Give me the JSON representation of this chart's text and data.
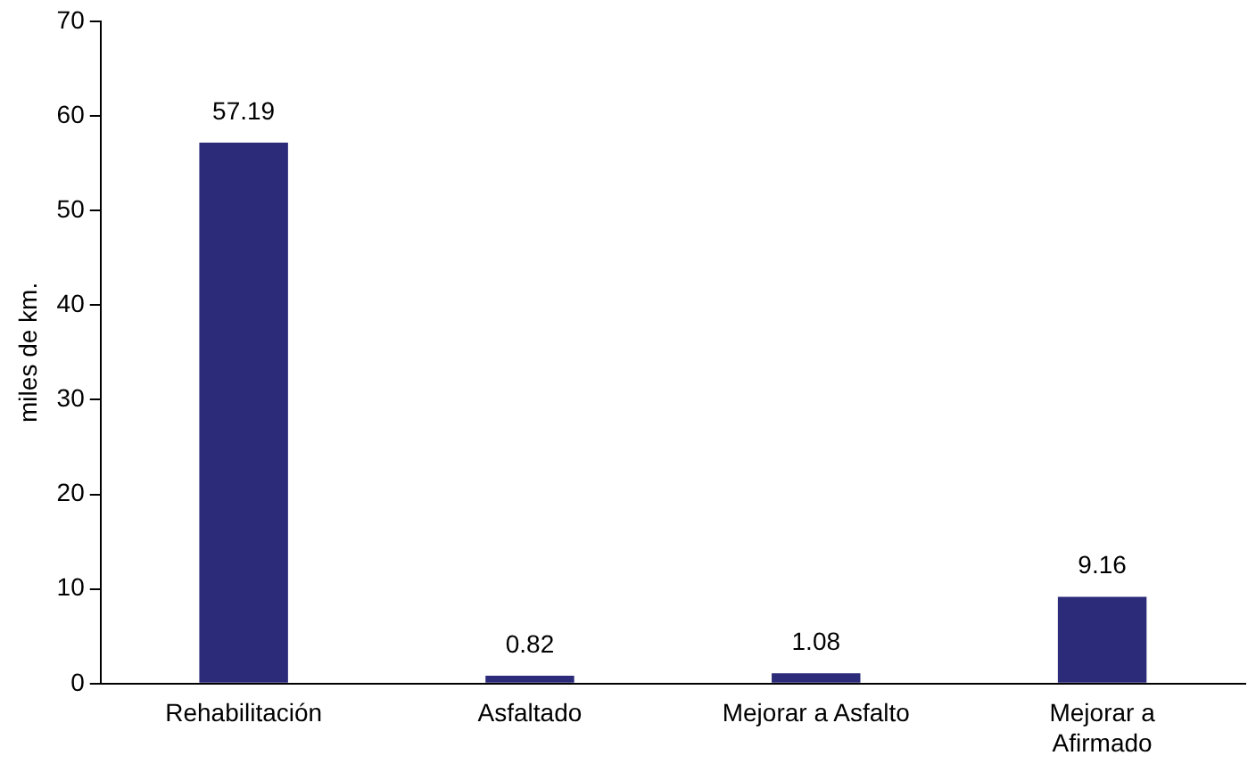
{
  "chart_data": {
    "type": "bar",
    "ylabel": "miles de km.",
    "categories": [
      "Rehabilitación",
      "Asfaltado",
      "Mejorar a Asfalto",
      "Mejorar a Afirmado"
    ],
    "values": [
      57.19,
      0.82,
      1.08,
      9.16
    ],
    "color": "#2b2b7a",
    "ylim": [
      0,
      70
    ],
    "yticks": [
      0,
      10,
      20,
      30,
      40,
      50,
      60,
      70
    ],
    "grid": false,
    "legend": false,
    "data_labels": true
  }
}
